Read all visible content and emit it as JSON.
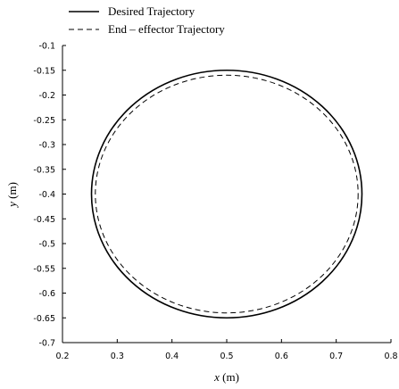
{
  "chart_data": {
    "type": "line",
    "title": "",
    "xlabel_var": "x",
    "xlabel_unit": " (m)",
    "ylabel_var": "y",
    "ylabel_unit": " (m)",
    "xlim": [
      0.2,
      0.8
    ],
    "ylim": [
      -0.7,
      -0.1
    ],
    "xticks": [
      "0.2",
      "0.3",
      "0.4",
      "0.5",
      "0.6",
      "0.7",
      "0.8"
    ],
    "yticks": [
      "-0.1",
      "-0.15",
      "-0.2",
      "-0.25",
      "-0.3",
      "-0.35",
      "-0.4",
      "-0.45",
      "-0.5",
      "-0.55",
      "-0.6",
      "-0.65",
      "-0.7"
    ],
    "grid": false,
    "legend_position": "top-left, above plot",
    "series": [
      {
        "name": "Desired Trajectory",
        "style": "solid",
        "shape": "circle",
        "center": [
          0.5,
          -0.4
        ],
        "radius_x": 0.247,
        "radius_y": 0.25
      },
      {
        "name": "End – effector Trajectory",
        "style": "dashed",
        "shape": "circle",
        "center": [
          0.5,
          -0.4
        ],
        "radius_x": 0.24,
        "radius_y": 0.24
      }
    ],
    "line_color": "#000000"
  }
}
